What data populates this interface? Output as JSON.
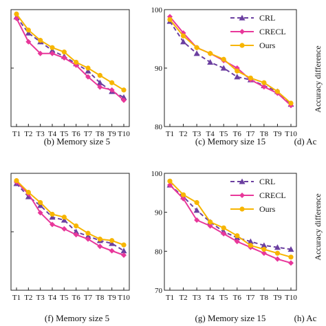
{
  "styles": {
    "CRL": {
      "color": "#6b3fa0",
      "dash": "6,4",
      "marker": "triangle"
    },
    "CRECL": {
      "color": "#e8379a",
      "dash": "",
      "marker": "diamond"
    },
    "Ours": {
      "color": "#f7b500",
      "dash": "",
      "marker": "circle"
    }
  },
  "side_labels": {
    "top": "Accuracy difference",
    "bottom": "Accuracy difference"
  },
  "chart_data": [
    {
      "type": "line",
      "caption": "(b) Memory size 5",
      "categories": [
        "T1",
        "T2",
        "T3",
        "T4",
        "T5",
        "T6",
        "T7",
        "T8",
        "T9",
        "T10"
      ],
      "ylim": [
        60,
        100
      ],
      "yticks": [
        "",
        "",
        ""
      ],
      "legend": "none",
      "series": [
        {
          "name": "CRL",
          "values": [
            97.5,
            92.0,
            89.0,
            86.0,
            84.0,
            81.5,
            79.0,
            75.0,
            72.0,
            70.0
          ]
        },
        {
          "name": "CRECL",
          "values": [
            97.0,
            89.0,
            85.0,
            85.0,
            83.5,
            81.0,
            77.0,
            73.5,
            72.5,
            69.0
          ]
        },
        {
          "name": "Ours",
          "values": [
            98.5,
            93.0,
            89.5,
            87.0,
            85.5,
            82.0,
            80.0,
            77.5,
            75.0,
            72.5
          ]
        }
      ]
    },
    {
      "type": "line",
      "caption": "(c) Memory size 15",
      "categories": [
        "T1",
        "T2",
        "T3",
        "T4",
        "T5",
        "T6",
        "T7",
        "T8",
        "T9",
        "T10"
      ],
      "ylim": [
        80,
        100
      ],
      "yticks": [
        "80",
        "90",
        "100"
      ],
      "legend": "top-right",
      "series": [
        {
          "name": "CRL",
          "values": [
            98.0,
            94.5,
            92.5,
            91.0,
            90.0,
            88.5,
            88.0,
            87.0,
            86.0,
            83.8
          ]
        },
        {
          "name": "CRECL",
          "values": [
            98.8,
            96.0,
            93.5,
            92.5,
            91.3,
            90.0,
            88.0,
            86.8,
            85.7,
            83.6
          ]
        },
        {
          "name": "Ours",
          "values": [
            98.3,
            95.5,
            93.5,
            92.5,
            91.5,
            89.5,
            88.3,
            87.5,
            86.0,
            84.0
          ]
        }
      ]
    },
    {
      "type": "line",
      "caption": "(d) Ac",
      "categories": [],
      "legend": "none",
      "series": []
    },
    {
      "type": "line",
      "caption": "(f) Memory size 5",
      "categories": [
        "T1",
        "T2",
        "T3",
        "T4",
        "T5",
        "T6",
        "T7",
        "T8",
        "T9",
        "T10"
      ],
      "ylim": [
        60,
        100
      ],
      "yticks": [
        "",
        "",
        ""
      ],
      "legend": "none",
      "series": [
        {
          "name": "CRL",
          "values": [
            96.5,
            92.0,
            89.0,
            85.0,
            84.0,
            80.0,
            78.5,
            77.0,
            76.0,
            73.5
          ]
        },
        {
          "name": "CRECL",
          "values": [
            97.0,
            93.0,
            86.5,
            82.5,
            81.0,
            79.0,
            77.5,
            75.0,
            73.5,
            72.0
          ]
        },
        {
          "name": "Ours",
          "values": [
            97.5,
            93.5,
            90.0,
            86.0,
            85.0,
            82.0,
            79.5,
            77.5,
            77.0,
            75.5
          ]
        }
      ]
    },
    {
      "type": "line",
      "caption": "(g) Memory size 15",
      "categories": [
        "T1",
        "T2",
        "T3",
        "T4",
        "T5",
        "T6",
        "T7",
        "T8",
        "T9",
        "T10"
      ],
      "ylim": [
        70,
        100
      ],
      "yticks": [
        "70",
        "80",
        "90",
        "100"
      ],
      "legend": "top-right",
      "series": [
        {
          "name": "CRL",
          "values": [
            97.0,
            94.0,
            90.5,
            87.5,
            85.0,
            83.5,
            82.5,
            81.5,
            81.0,
            80.5
          ]
        },
        {
          "name": "CRECL",
          "values": [
            97.0,
            93.5,
            88.0,
            86.5,
            84.5,
            82.5,
            81.0,
            79.5,
            78.0,
            77.0
          ]
        },
        {
          "name": "Ours",
          "values": [
            98.0,
            94.5,
            92.5,
            87.5,
            86.0,
            84.0,
            81.5,
            80.5,
            79.5,
            78.5
          ]
        }
      ]
    },
    {
      "type": "line",
      "caption": "(h) Ac",
      "categories": [],
      "legend": "none",
      "series": []
    }
  ]
}
